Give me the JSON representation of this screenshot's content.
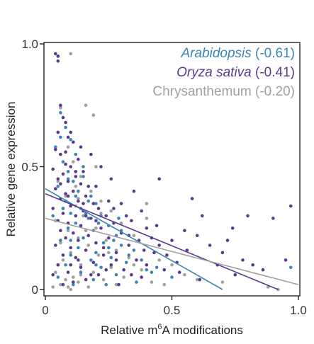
{
  "chart_data": {
    "type": "scatter",
    "title": "",
    "xlabel_prefix": "Relative m",
    "xlabel_superscript": "6",
    "xlabel_suffix": "A modifications",
    "ylabel": "Relative gene expression",
    "xlim": [
      0,
      1
    ],
    "ylim": [
      0,
      1
    ],
    "xticks": [
      0,
      0.5,
      1.0
    ],
    "xtick_labels": [
      "0",
      "0.5",
      "1.0"
    ],
    "yticks": [
      0,
      0.5,
      1.0
    ],
    "ytick_labels": [
      "0",
      "0.5",
      "1.0"
    ],
    "grid": false,
    "legend_position": "top-right",
    "series": [
      {
        "name": "Arabidopsis",
        "label_suffix": " (-0.61)",
        "italic": true,
        "color": "#3a86b8",
        "fit_line": {
          "x": [
            0,
            0.7
          ],
          "y": [
            0.41,
            0
          ]
        },
        "points": [
          [
            0.05,
            0.95
          ],
          [
            0.06,
            0.72
          ],
          [
            0.08,
            0.66
          ],
          [
            0.1,
            0.61
          ],
          [
            0.04,
            0.58
          ],
          [
            0.12,
            0.55
          ],
          [
            0.07,
            0.52
          ],
          [
            0.09,
            0.48
          ],
          [
            0.15,
            0.46
          ],
          [
            0.11,
            0.44
          ],
          [
            0.05,
            0.42
          ],
          [
            0.13,
            0.4
          ],
          [
            0.18,
            0.38
          ],
          [
            0.08,
            0.36
          ],
          [
            0.2,
            0.35
          ],
          [
            0.14,
            0.33
          ],
          [
            0.1,
            0.31
          ],
          [
            0.22,
            0.3
          ],
          [
            0.17,
            0.29
          ],
          [
            0.12,
            0.27
          ],
          [
            0.25,
            0.26
          ],
          [
            0.09,
            0.25
          ],
          [
            0.19,
            0.24
          ],
          [
            0.28,
            0.22
          ],
          [
            0.15,
            0.21
          ],
          [
            0.06,
            0.2
          ],
          [
            0.23,
            0.19
          ],
          [
            0.3,
            0.18
          ],
          [
            0.13,
            0.17
          ],
          [
            0.35,
            0.16
          ],
          [
            0.2,
            0.15
          ],
          [
            0.1,
            0.14
          ],
          [
            0.26,
            0.13
          ],
          [
            0.18,
            0.12
          ],
          [
            0.32,
            0.11
          ],
          [
            0.08,
            0.1
          ],
          [
            0.22,
            0.09
          ],
          [
            0.4,
            0.08
          ],
          [
            0.14,
            0.07
          ],
          [
            0.28,
            0.06
          ],
          [
            0.05,
            0.05
          ],
          [
            0.19,
            0.04
          ],
          [
            0.36,
            0.03
          ],
          [
            0.11,
            0.02
          ],
          [
            0.24,
            0.02
          ],
          [
            0.42,
            0.07
          ],
          [
            0.16,
            0.31
          ],
          [
            0.21,
            0.27
          ],
          [
            0.07,
            0.33
          ],
          [
            0.27,
            0.2
          ],
          [
            0.33,
            0.14
          ],
          [
            0.09,
            0.45
          ],
          [
            0.12,
            0.38
          ],
          [
            0.3,
            0.24
          ],
          [
            0.17,
            0.36
          ],
          [
            0.38,
            0.12
          ],
          [
            0.44,
            0.09
          ],
          [
            0.5,
            0.05
          ],
          [
            0.97,
            0.09
          ],
          [
            0.15,
            0.5
          ],
          [
            0.06,
            0.62
          ],
          [
            0.03,
            0.3
          ],
          [
            0.25,
            0.17
          ],
          [
            0.2,
            0.1
          ],
          [
            0.14,
            0.26
          ],
          [
            0.29,
            0.29
          ],
          [
            0.1,
            0.2
          ]
        ]
      },
      {
        "name": "Oryza sativa",
        "label_suffix": " (-0.41)",
        "italic": true,
        "color": "#5b3a8e",
        "fit_line": {
          "x": [
            0,
            0.92
          ],
          "y": [
            0.39,
            0
          ]
        },
        "points": [
          [
            0.04,
            0.96
          ],
          [
            0.05,
            0.95
          ],
          [
            0.05,
            0.93
          ],
          [
            0.06,
            0.75
          ],
          [
            0.07,
            0.7
          ],
          [
            0.08,
            0.68
          ],
          [
            0.05,
            0.64
          ],
          [
            0.09,
            0.62
          ],
          [
            0.11,
            0.6
          ],
          [
            0.04,
            0.57
          ],
          [
            0.06,
            0.55
          ],
          [
            0.13,
            0.53
          ],
          [
            0.08,
            0.51
          ],
          [
            0.1,
            0.5
          ],
          [
            0.03,
            0.49
          ],
          [
            0.15,
            0.48
          ],
          [
            0.07,
            0.47
          ],
          [
            0.12,
            0.46
          ],
          [
            0.05,
            0.45
          ],
          [
            0.09,
            0.44
          ],
          [
            0.14,
            0.43
          ],
          [
            0.17,
            0.42
          ],
          [
            0.04,
            0.41
          ],
          [
            0.11,
            0.4
          ],
          [
            0.08,
            0.39
          ],
          [
            0.16,
            0.38
          ],
          [
            0.06,
            0.37
          ],
          [
            0.13,
            0.36
          ],
          [
            0.19,
            0.35
          ],
          [
            0.1,
            0.34
          ],
          [
            0.03,
            0.33
          ],
          [
            0.21,
            0.33
          ],
          [
            0.15,
            0.32
          ],
          [
            0.07,
            0.31
          ],
          [
            0.12,
            0.3
          ],
          [
            0.24,
            0.3
          ],
          [
            0.18,
            0.29
          ],
          [
            0.05,
            0.28
          ],
          [
            0.09,
            0.27
          ],
          [
            0.27,
            0.27
          ],
          [
            0.14,
            0.26
          ],
          [
            0.22,
            0.25
          ],
          [
            0.06,
            0.24
          ],
          [
            0.11,
            0.23
          ],
          [
            0.3,
            0.23
          ],
          [
            0.17,
            0.22
          ],
          [
            0.08,
            0.21
          ],
          [
            0.25,
            0.21
          ],
          [
            0.13,
            0.2
          ],
          [
            0.2,
            0.19
          ],
          [
            0.04,
            0.18
          ],
          [
            0.33,
            0.18
          ],
          [
            0.1,
            0.17
          ],
          [
            0.16,
            0.16
          ],
          [
            0.28,
            0.15
          ],
          [
            0.07,
            0.14
          ],
          [
            0.23,
            0.14
          ],
          [
            0.12,
            0.13
          ],
          [
            0.36,
            0.12
          ],
          [
            0.19,
            0.11
          ],
          [
            0.05,
            0.1
          ],
          [
            0.26,
            0.1
          ],
          [
            0.14,
            0.09
          ],
          [
            0.31,
            0.08
          ],
          [
            0.09,
            0.07
          ],
          [
            0.21,
            0.06
          ],
          [
            0.38,
            0.05
          ],
          [
            0.16,
            0.04
          ],
          [
            0.11,
            0.03
          ],
          [
            0.29,
            0.02
          ],
          [
            0.34,
            0.28
          ],
          [
            0.4,
            0.25
          ],
          [
            0.42,
            0.21
          ],
          [
            0.45,
            0.18
          ],
          [
            0.48,
            0.14
          ],
          [
            0.52,
            0.11
          ],
          [
            0.38,
            0.32
          ],
          [
            0.55,
            0.24
          ],
          [
            0.6,
            0.22
          ],
          [
            0.65,
            0.18
          ],
          [
            0.7,
            0.15
          ],
          [
            0.74,
            0.25
          ],
          [
            0.62,
            0.3
          ],
          [
            0.78,
            0.12
          ],
          [
            0.82,
            0.1
          ],
          [
            0.86,
            0.08
          ],
          [
            0.97,
            0.34
          ],
          [
            0.9,
            0.29
          ],
          [
            0.75,
            0.06
          ],
          [
            0.58,
            0.37
          ],
          [
            0.45,
            0.45
          ],
          [
            0.35,
            0.4
          ],
          [
            0.3,
            0.35
          ],
          [
            0.25,
            0.36
          ],
          [
            0.2,
            0.42
          ],
          [
            0.22,
            0.5
          ],
          [
            0.18,
            0.55
          ],
          [
            0.14,
            0.58
          ],
          [
            0.26,
            0.45
          ],
          [
            0.32,
            0.3
          ],
          [
            0.37,
            0.2
          ],
          [
            0.43,
            0.15
          ],
          [
            0.47,
            0.08
          ],
          [
            0.4,
            0.1
          ],
          [
            0.34,
            0.06
          ],
          [
            0.24,
            0.08
          ],
          [
            0.18,
            0.06
          ],
          [
            0.1,
            0.1
          ],
          [
            0.03,
            0.06
          ],
          [
            0.07,
            0.02
          ],
          [
            0.13,
            0.12
          ],
          [
            0.2,
            0.28
          ],
          [
            0.27,
            0.33
          ],
          [
            0.15,
            0.35
          ],
          [
            0.09,
            0.38
          ],
          [
            0.06,
            0.43
          ],
          [
            0.12,
            0.48
          ],
          [
            0.08,
            0.56
          ],
          [
            0.1,
            0.64
          ],
          [
            0.16,
            0.3
          ],
          [
            0.23,
            0.17
          ],
          [
            0.28,
            0.12
          ],
          [
            0.33,
            0.22
          ],
          [
            0.39,
            0.16
          ],
          [
            0.44,
            0.26
          ],
          [
            0.5,
            0.2
          ],
          [
            0.56,
            0.16
          ],
          [
            0.68,
            0.1
          ],
          [
            0.72,
            0.2
          ],
          [
            0.8,
            0.3
          ],
          [
            0.95,
            0.12
          ],
          [
            0.53,
            0.07
          ],
          [
            0.61,
            0.04
          ]
        ]
      },
      {
        "name": "Chrysanthemum",
        "label_suffix": " (-0.20)",
        "italic": false,
        "color": "#a0a0a0",
        "fit_line": {
          "x": [
            0,
            1.0
          ],
          "y": [
            0.29,
            0.02
          ]
        },
        "points": [
          [
            0.1,
            0.96
          ],
          [
            0.06,
            0.74
          ],
          [
            0.16,
            0.75
          ],
          [
            0.19,
            0.71
          ],
          [
            0.09,
            0.58
          ],
          [
            0.11,
            0.52
          ],
          [
            0.14,
            0.46
          ],
          [
            0.05,
            0.44
          ],
          [
            0.18,
            0.4
          ],
          [
            0.08,
            0.38
          ],
          [
            0.22,
            0.36
          ],
          [
            0.12,
            0.34
          ],
          [
            0.26,
            0.32
          ],
          [
            0.15,
            0.3
          ],
          [
            0.04,
            0.28
          ],
          [
            0.3,
            0.27
          ],
          [
            0.2,
            0.25
          ],
          [
            0.09,
            0.24
          ],
          [
            0.35,
            0.22
          ],
          [
            0.13,
            0.21
          ],
          [
            0.24,
            0.2
          ],
          [
            0.06,
            0.19
          ],
          [
            0.4,
            0.35
          ],
          [
            0.17,
            0.18
          ],
          [
            0.28,
            0.16
          ],
          [
            0.1,
            0.15
          ],
          [
            0.45,
            0.12
          ],
          [
            0.21,
            0.14
          ],
          [
            0.33,
            0.13
          ],
          [
            0.07,
            0.12
          ],
          [
            0.5,
            0.1
          ],
          [
            0.14,
            0.1
          ],
          [
            0.26,
            0.09
          ],
          [
            0.38,
            0.08
          ],
          [
            0.04,
            0.07
          ],
          [
            0.19,
            0.07
          ],
          [
            0.55,
            0.06
          ],
          [
            0.11,
            0.05
          ],
          [
            0.31,
            0.05
          ],
          [
            0.08,
            0.04
          ],
          [
            0.23,
            0.04
          ],
          [
            0.6,
            0.04
          ],
          [
            0.13,
            0.03
          ],
          [
            0.42,
            0.03
          ],
          [
            0.06,
            0.02
          ],
          [
            0.28,
            0.02
          ],
          [
            0.09,
            0.01
          ],
          [
            0.17,
            0.01
          ],
          [
            0.47,
            0.02
          ],
          [
            0.7,
            0.03
          ],
          [
            0.88,
            0.01
          ],
          [
            0.92,
            0.0
          ],
          [
            0.35,
            0.1
          ],
          [
            0.16,
            0.24
          ],
          [
            0.22,
            0.31
          ],
          [
            0.12,
            0.42
          ],
          [
            0.05,
            0.1
          ],
          [
            0.03,
            0.01
          ],
          [
            0.1,
            0.0
          ],
          [
            0.14,
            0.06
          ],
          [
            0.25,
            0.15
          ],
          [
            0.4,
            0.29
          ],
          [
            0.07,
            0.33
          ],
          [
            0.2,
            0.5
          ],
          [
            0.13,
            0.37
          ]
        ]
      }
    ]
  }
}
